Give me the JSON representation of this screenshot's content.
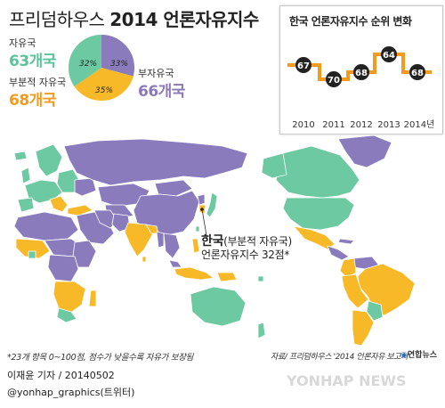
{
  "title": {
    "prefix": "프리덤하우스",
    "main": "2014 언론자유지수"
  },
  "legend": {
    "free": {
      "label": "자유국",
      "count": "63개국",
      "percent": "32%",
      "color": "#6cc9a1"
    },
    "partly_free": {
      "label": "부분적 자유국",
      "count": "68개국",
      "percent": "35%",
      "color": "#f7b928"
    },
    "not_free": {
      "label": "부자유국",
      "count": "66개국",
      "percent": "33%",
      "color": "#8a7bbd"
    }
  },
  "trend": {
    "title": "한국 언론자유지수 순위 변화",
    "years": [
      "2010",
      "2011",
      "2012",
      "2013",
      "2014년"
    ],
    "scores": [
      "67",
      "70",
      "68",
      "64",
      "68"
    ],
    "line_color": "#f39a1f"
  },
  "korea": {
    "name": "한국",
    "status": "(부분적 자유국)",
    "score_line": "언론자유지수 32점*"
  },
  "footnote": "*23개 항목 0~100점, 점수가 낮을수록 자유가 보장됨",
  "source": "자료/ 프리덤하우스 '2014 언론자유 보고서'",
  "logo": "연합뉴스",
  "byline": "이재윤 기자 / 20140502",
  "twitter": "@yonhap_graphics(트위터)",
  "watermark": "YONHAP NEWS"
}
